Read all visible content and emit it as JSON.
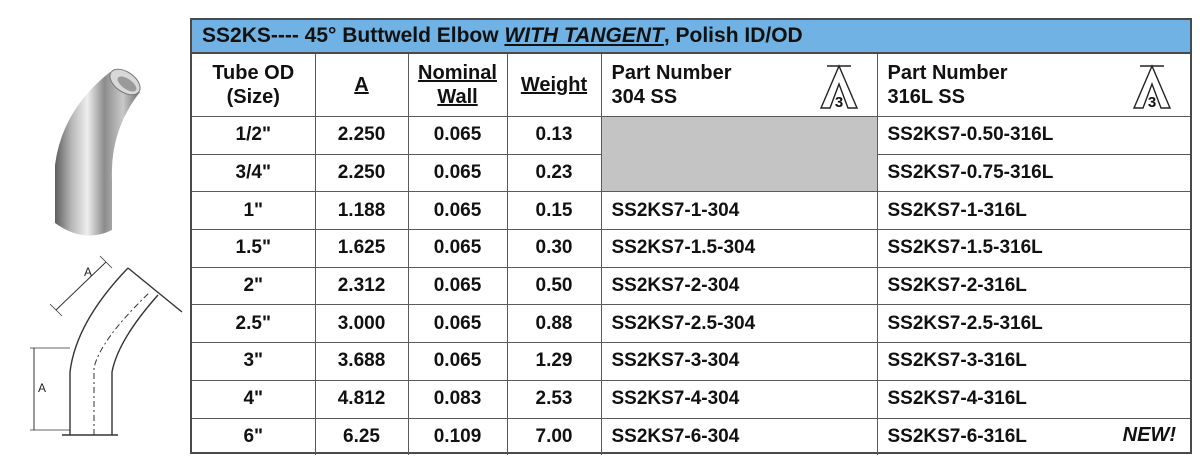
{
  "title": {
    "prefix": "SS2KS---- 45° Buttweld Elbow ",
    "emphasis": "WITH TANGENT",
    "suffix": ", Polish ID/OD"
  },
  "headers": {
    "tube_od_line1": "Tube OD",
    "tube_od_line2": "(Size)",
    "a": "A",
    "nominal_line1": "Nominal",
    "nominal_line2": "Wall",
    "weight": "Weight",
    "pn304_line1": "Part Number",
    "pn304_line2": "304 SS",
    "pn316_line1": "Part Number",
    "pn316_line2": "316L SS"
  },
  "diagram_labels": {
    "dim_top": "A",
    "dim_left": "A"
  },
  "a3_mark": "3",
  "rows": [
    {
      "size": "1/2\"",
      "a": "2.250",
      "wall": "0.065",
      "weight": "0.13",
      "pn304": "",
      "pn316": "SS2KS7-0.50-316L"
    },
    {
      "size": "3/4\"",
      "a": "2.250",
      "wall": "0.065",
      "weight": "0.23",
      "pn304": "",
      "pn316": "SS2KS7-0.75-316L"
    },
    {
      "size": "1\"",
      "a": "1.188",
      "wall": "0.065",
      "weight": "0.15",
      "pn304": "SS2KS7-1-304",
      "pn316": "SS2KS7-1-316L"
    },
    {
      "size": "1.5\"",
      "a": "1.625",
      "wall": "0.065",
      "weight": "0.30",
      "pn304": "SS2KS7-1.5-304",
      "pn316": "SS2KS7-1.5-316L"
    },
    {
      "size": "2\"",
      "a": "2.312",
      "wall": "0.065",
      "weight": "0.50",
      "pn304": "SS2KS7-2-304",
      "pn316": "SS2KS7-2-316L"
    },
    {
      "size": "2.5\"",
      "a": "3.000",
      "wall": "0.065",
      "weight": "0.88",
      "pn304": "SS2KS7-2.5-304",
      "pn316": "SS2KS7-2.5-316L"
    },
    {
      "size": "3\"",
      "a": "3.688",
      "wall": "0.065",
      "weight": "1.29",
      "pn304": "SS2KS7-3-304",
      "pn316": "SS2KS7-3-316L"
    },
    {
      "size": "4\"",
      "a": "4.812",
      "wall": "0.083",
      "weight": "2.53",
      "pn304": "SS2KS7-4-304",
      "pn316": "SS2KS7-4-316L"
    },
    {
      "size": "6\"",
      "a": "6.25",
      "wall": "0.109",
      "weight": "7.00",
      "pn304": "SS2KS7-6-304",
      "pn316": "SS2KS7-6-316L"
    }
  ],
  "new_badge": "NEW!"
}
